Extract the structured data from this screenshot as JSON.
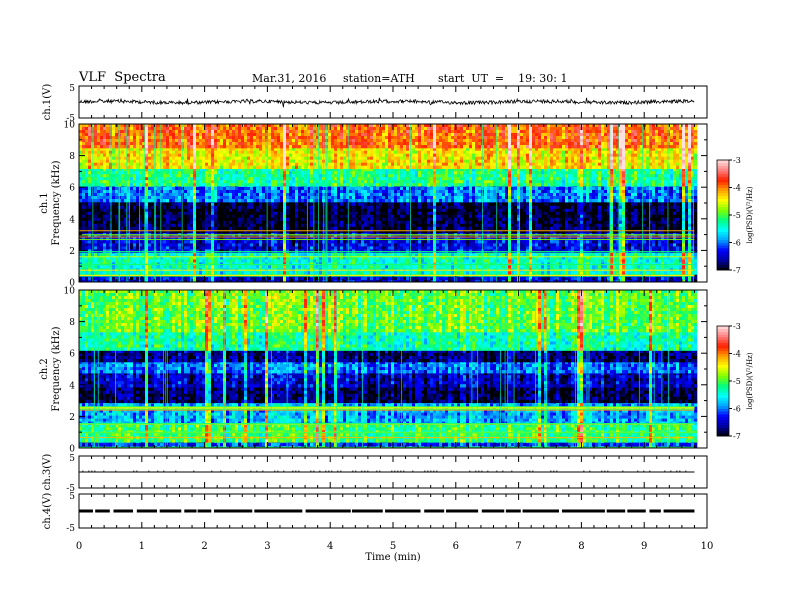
{
  "header": {
    "title": "VLF  Spectra",
    "date": "Mar.31, 2016",
    "station": "station=ATH",
    "start": "start  UT  =    19: 30: 1"
  },
  "chart_data": [
    {
      "type": "line",
      "panel": "ch1-waveform",
      "ylabel": "ch.1(V)",
      "yticks": [
        "5",
        "-5"
      ],
      "ylim": [
        -5,
        5
      ],
      "xlim": [
        0,
        10
      ],
      "trace_center": 0,
      "trace_amplitude": 0.9,
      "trace_end_min": 9.8
    },
    {
      "type": "heatmap",
      "panel": "ch1-spectrogram",
      "ylabel": "ch.1\nFrequency (kHz)",
      "ylabel_lines": [
        "ch.1",
        "Frequency  (kHz)"
      ],
      "yticks": [
        "0",
        "2",
        "4",
        "6",
        "8",
        "10"
      ],
      "ylim": [
        0,
        10
      ],
      "xlim": [
        0,
        10
      ],
      "data_end_min": 9.8,
      "colorbar": {
        "label": "log(PSD)(V²/Hz)",
        "ticks": [
          "-3",
          "-4",
          "-5",
          "-6",
          "-7"
        ],
        "range": [
          -7,
          -3
        ]
      },
      "bands_khz": [
        {
          "from": 0,
          "to": 0.5,
          "level": -6.5
        },
        {
          "from": 0.5,
          "to": 2,
          "level": -5.4
        },
        {
          "from": 2,
          "to": 3.2,
          "level": -6.4
        },
        {
          "from": 3.2,
          "to": 5.2,
          "level": -6.9
        },
        {
          "from": 5.2,
          "to": 6.2,
          "level": -6.0
        },
        {
          "from": 6.2,
          "to": 7.2,
          "level": -5.2
        },
        {
          "from": 7.2,
          "to": 8.5,
          "level": -4.4
        },
        {
          "from": 8.5,
          "to": 10,
          "level": -3.9
        }
      ]
    },
    {
      "type": "heatmap",
      "panel": "ch2-spectrogram",
      "ylabel": "ch.2\nFrequency (kHz)",
      "ylabel_lines": [
        "ch.2",
        "Frequency  (kHz)"
      ],
      "yticks": [
        "0",
        "2",
        "4",
        "6",
        "8",
        "10"
      ],
      "ylim": [
        0,
        10
      ],
      "xlim": [
        0,
        10
      ],
      "data_end_min": 9.8,
      "colorbar": {
        "label": "log(PSD)(V²/Hz)",
        "ticks": [
          "-3",
          "-4",
          "-5",
          "-6",
          "-7"
        ],
        "range": [
          -7,
          -3
        ]
      },
      "bands_khz": [
        {
          "from": 0,
          "to": 0.5,
          "level": -6.2
        },
        {
          "from": 0.5,
          "to": 1.5,
          "level": -5.1
        },
        {
          "from": 1.5,
          "to": 3.0,
          "level": -5.8
        },
        {
          "from": 3.0,
          "to": 4.0,
          "level": -6.8
        },
        {
          "from": 4.0,
          "to": 4.8,
          "level": -6.5
        },
        {
          "from": 4.8,
          "to": 5.5,
          "level": -6.0
        },
        {
          "from": 5.5,
          "to": 6.2,
          "level": -6.7
        },
        {
          "from": 6.2,
          "to": 7.5,
          "level": -5.3
        },
        {
          "from": 7.5,
          "to": 10,
          "level": -4.9
        }
      ]
    },
    {
      "type": "line",
      "panel": "ch3-waveform",
      "ylabel": "ch.3(V)",
      "yticks": [
        "5",
        "-5"
      ],
      "ylim": [
        -5,
        5
      ],
      "xlim": [
        0,
        10
      ],
      "trace_center": 0,
      "trace_amplitude": 0.05,
      "trace_end_min": 9.8
    },
    {
      "type": "line",
      "panel": "ch4-waveform",
      "ylabel": "ch.4(V)",
      "yticks": [
        "5",
        "-5"
      ],
      "ylim": [
        -5,
        5
      ],
      "xlim": [
        0,
        10
      ],
      "trace_center": 0,
      "trace_amplitude": 0.3,
      "trace_end_min": 9.8
    }
  ],
  "xaxis": {
    "label": "Time  (min)",
    "ticks": [
      "0",
      "1",
      "2",
      "3",
      "4",
      "5",
      "6",
      "7",
      "8",
      "9",
      "10"
    ]
  },
  "colors": {
    "axis": "#000000",
    "trace": "#000000",
    "colormap": [
      "#000000",
      "#0000a0",
      "#0000ff",
      "#00a0ff",
      "#00ffff",
      "#00ff80",
      "#80ff00",
      "#ffff00",
      "#ffa000",
      "#ff2000",
      "#ff8080",
      "#ffe0e0"
    ]
  }
}
